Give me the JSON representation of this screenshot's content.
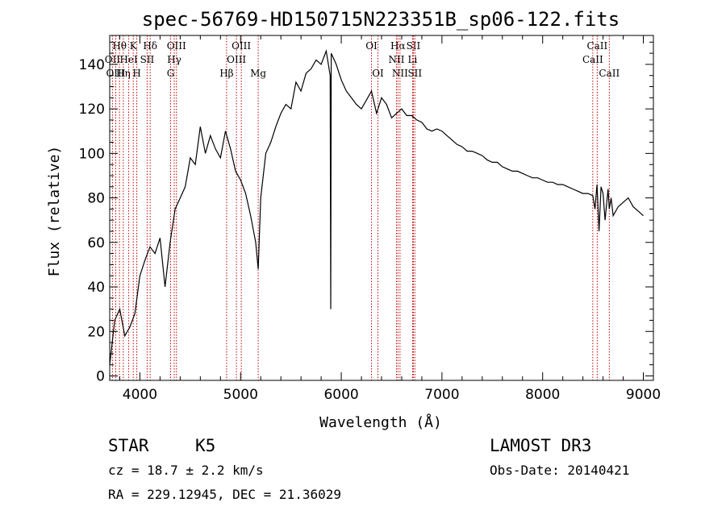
{
  "chart_data": {
    "type": "line",
    "title": "spec-56769-HD150715N223351B_sp06-122.fits",
    "xlabel": "Wavelength (Å)",
    "ylabel": "Flux (relative)",
    "xlim": [
      3700,
      9100
    ],
    "ylim": [
      -2,
      153
    ],
    "xticks": [
      4000,
      5000,
      6000,
      7000,
      8000,
      9000
    ],
    "yticks": [
      0,
      20,
      40,
      60,
      80,
      100,
      120,
      140
    ],
    "grid": false,
    "series": [
      {
        "x": [
          3700,
          3750,
          3800,
          3850,
          3900,
          3950,
          4000,
          4050,
          4100,
          4150,
          4200,
          4250,
          4300,
          4350,
          4400,
          4450,
          4500,
          4550,
          4600,
          4650,
          4700,
          4750,
          4800,
          4850,
          4900,
          4950,
          5000,
          5050,
          5100,
          5150,
          5175,
          5200,
          5250,
          5300,
          5350,
          5400,
          5450,
          5500,
          5550,
          5600,
          5650,
          5700,
          5750,
          5800,
          5850,
          5890,
          5895,
          5900,
          5950,
          6000,
          6050,
          6100,
          6150,
          6200,
          6250,
          6300,
          6350,
          6400,
          6450,
          6500,
          6550,
          6600,
          6650,
          6700,
          6750,
          6800,
          6850,
          6900,
          6950,
          7000,
          7050,
          7100,
          7150,
          7200,
          7250,
          7300,
          7350,
          7400,
          7450,
          7500,
          7550,
          7600,
          7650,
          7700,
          7750,
          7800,
          7850,
          7900,
          7950,
          8000,
          8050,
          8100,
          8150,
          8200,
          8250,
          8300,
          8350,
          8400,
          8450,
          8498,
          8520,
          8540,
          8560,
          8580,
          8600,
          8620,
          8650,
          8662,
          8680,
          8700,
          8750,
          8800,
          8850,
          8900,
          8950,
          9000
        ],
        "y": [
          5,
          25,
          30,
          18,
          22,
          28,
          45,
          52,
          58,
          55,
          62,
          40,
          60,
          75,
          80,
          85,
          98,
          95,
          112,
          100,
          108,
          102,
          98,
          110,
          102,
          92,
          88,
          82,
          72,
          60,
          48,
          80,
          100,
          105,
          112,
          118,
          122,
          120,
          132,
          128,
          136,
          138,
          142,
          140,
          146,
          135,
          30,
          145,
          140,
          133,
          128,
          125,
          122,
          120,
          124,
          128,
          118,
          125,
          122,
          116,
          118,
          120,
          117,
          117,
          115,
          114,
          111,
          110,
          111,
          110,
          108,
          106,
          104,
          103,
          101,
          101,
          100,
          99,
          97,
          96,
          96,
          94,
          93,
          92,
          92,
          91,
          90,
          89,
          89,
          88,
          87,
          87,
          86,
          86,
          85,
          84,
          83,
          82,
          82,
          81,
          75,
          86,
          65,
          85,
          82,
          70,
          84,
          75,
          80,
          72,
          76,
          78,
          80,
          76,
          74,
          72
        ]
      }
    ],
    "lines": [
      {
        "label": "Hθ",
        "x": 3797,
        "row": 0
      },
      {
        "label": "OII",
        "x": 3727,
        "row": 1
      },
      {
        "label": "OIII",
        "x": 3760,
        "row": 2
      },
      {
        "label": "Hη",
        "x": 3835,
        "row": 2
      },
      {
        "label": "HeI",
        "x": 3889,
        "row": 1
      },
      {
        "label": "K",
        "x": 3934,
        "row": 0
      },
      {
        "label": "H",
        "x": 3969,
        "row": 2
      },
      {
        "label": "SII",
        "x": 4072,
        "row": 1
      },
      {
        "label": "Hδ",
        "x": 4102,
        "row": 0
      },
      {
        "label": "OIII",
        "x": 4363,
        "row": 0
      },
      {
        "label": "Hγ",
        "x": 4341,
        "row": 1
      },
      {
        "label": "G",
        "x": 4305,
        "row": 2
      },
      {
        "label": "Hβ",
        "x": 4861,
        "row": 2
      },
      {
        "label": "OIII",
        "x": 5007,
        "row": 0
      },
      {
        "label": "OIII",
        "x": 4959,
        "row": 1
      },
      {
        "label": "Mg",
        "x": 5175,
        "row": 2
      },
      {
        "label": "OI",
        "x": 6300,
        "row": 0
      },
      {
        "label": "OI",
        "x": 6364,
        "row": 2
      },
      {
        "label": "Hα",
        "x": 6563,
        "row": 0
      },
      {
        "label": "SII",
        "x": 6716,
        "row": 0
      },
      {
        "label": "NII",
        "x": 6548,
        "row": 1
      },
      {
        "label": "Li",
        "x": 6708,
        "row": 1
      },
      {
        "label": "NII",
        "x": 6583,
        "row": 2
      },
      {
        "label": "SII",
        "x": 6731,
        "row": 2
      },
      {
        "label": "CaII",
        "x": 8542,
        "row": 0
      },
      {
        "label": "CaII",
        "x": 8498,
        "row": 1
      },
      {
        "label": "CaII",
        "x": 8662,
        "row": 2
      }
    ]
  },
  "footer": {
    "class_label": "STAR",
    "subclass": "K5",
    "survey": "LAMOST DR3",
    "cz": "cz = 18.7 ± 2.2 km/s",
    "obs_date": "Obs-Date: 20140421",
    "coords": "RA = 229.12945, DEC =  21.36029"
  }
}
